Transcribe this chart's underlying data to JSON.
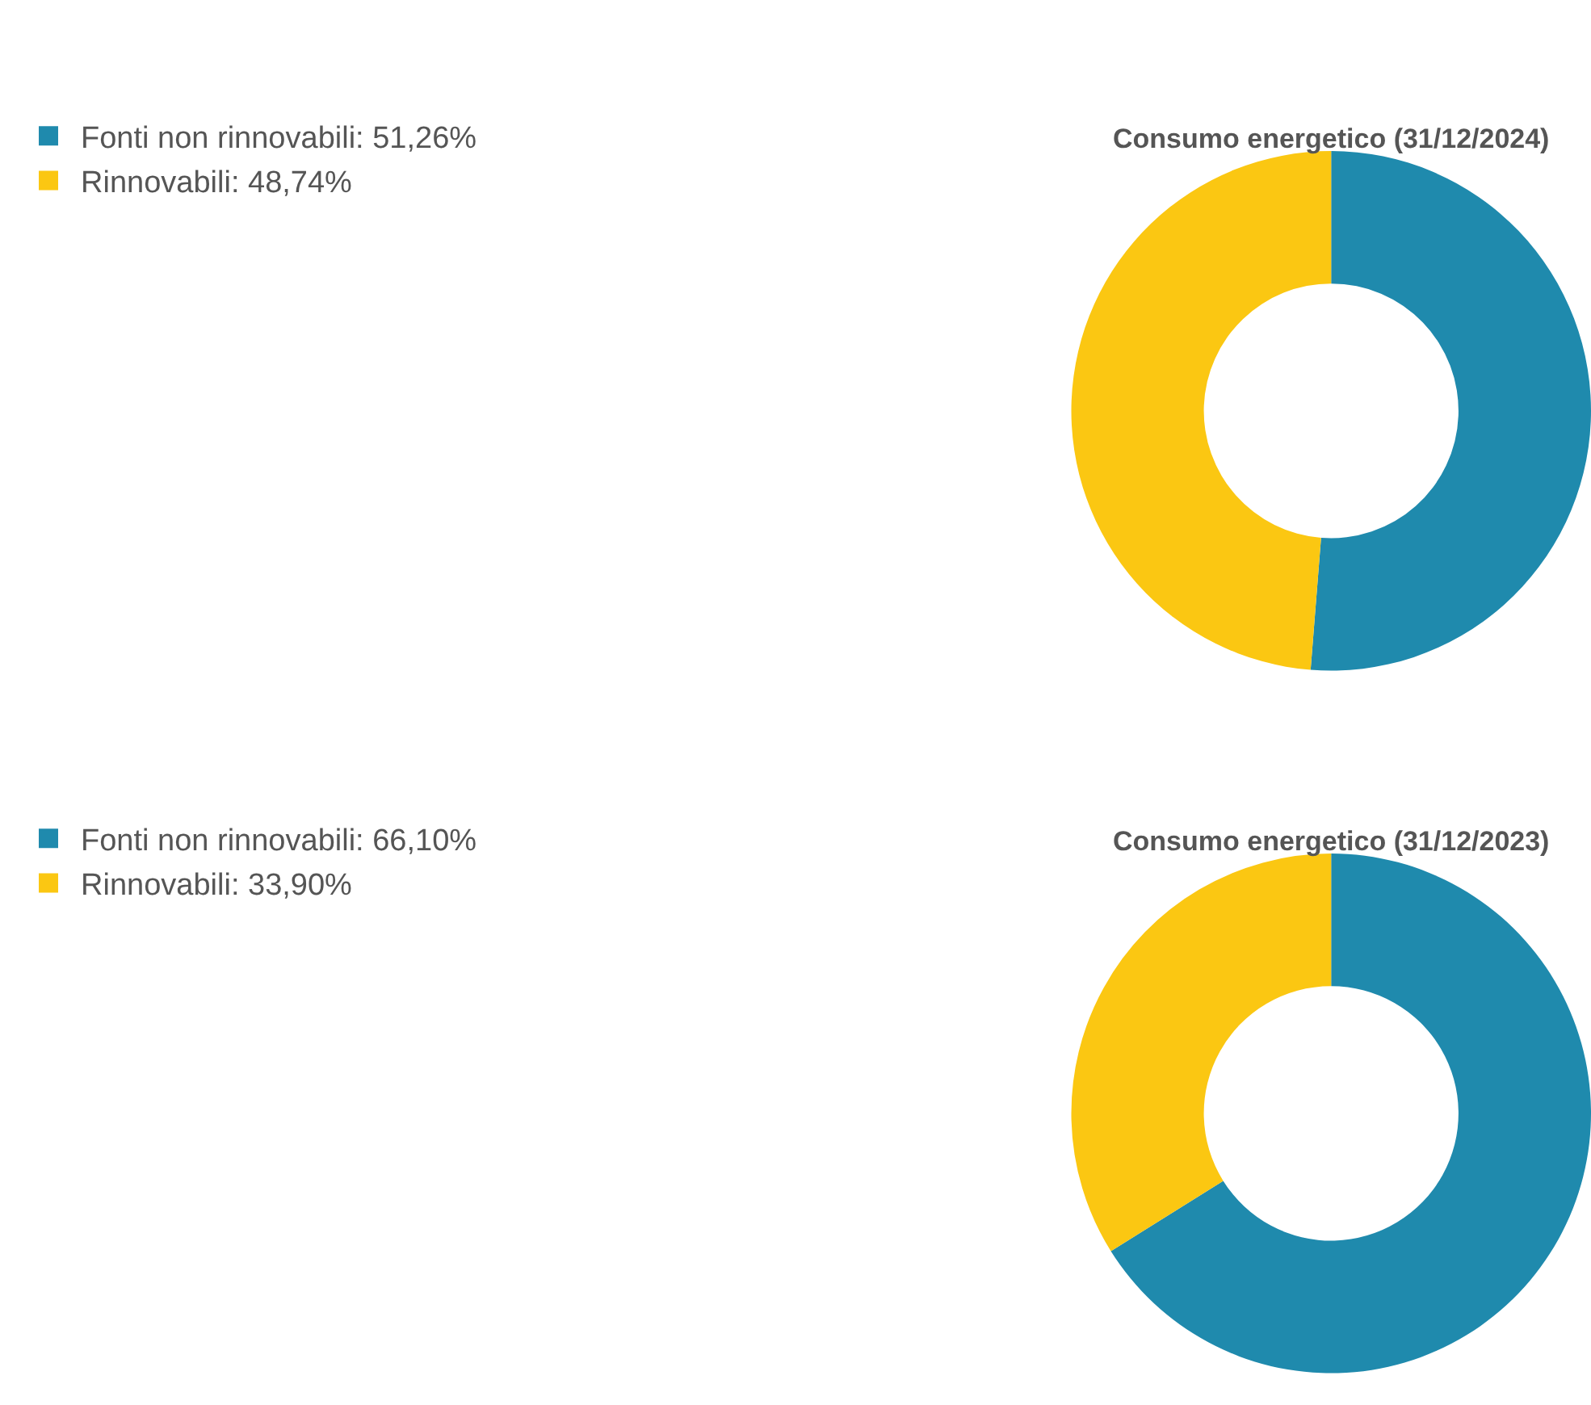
{
  "chart_data": [
    {
      "type": "donut",
      "title": "Consumo energetico (31/12/2024)",
      "categories": [
        "Fonti non rinnovabili: 51,26%",
        "Rinnovabili: 48,74%"
      ],
      "values": [
        51.26,
        48.74
      ],
      "colors": [
        "#1f8aad",
        "#fbc712"
      ],
      "legend": "top left"
    },
    {
      "type": "donut",
      "title": "Consumo energetico (31/12/2023)",
      "categories": [
        "Fonti non rinnovabili: 66,10%",
        "Rinnovabili: 33,90%"
      ],
      "values": [
        66.1,
        33.9
      ],
      "colors": [
        "#1f8aad",
        "#fbc712"
      ],
      "legend": "top left"
    }
  ]
}
